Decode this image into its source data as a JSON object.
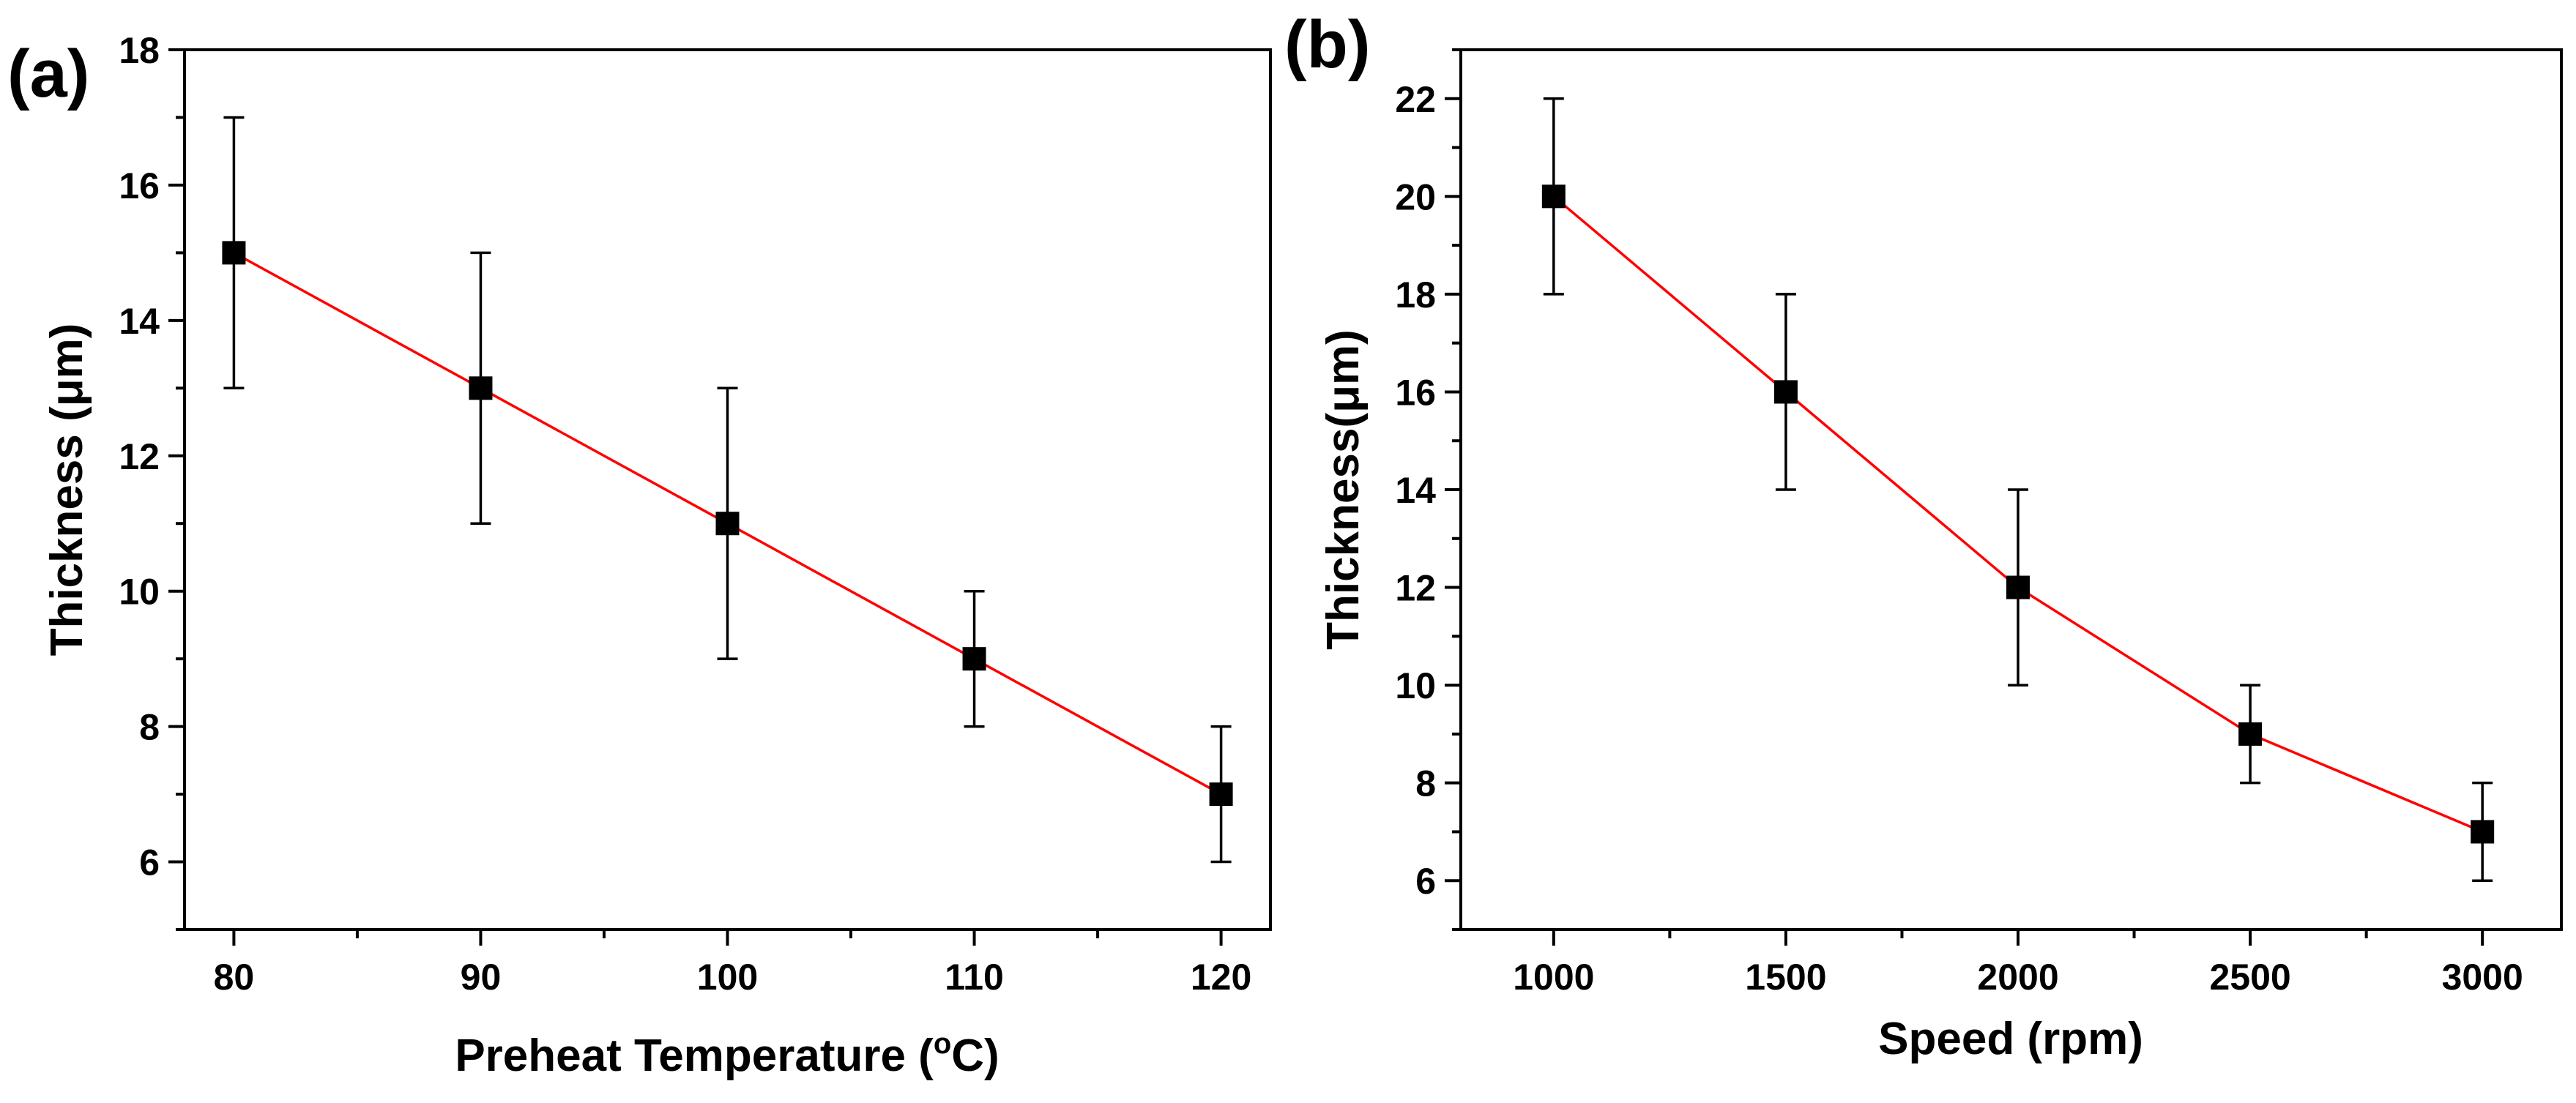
{
  "colors": {
    "line": "#ff0000",
    "marker": "#000000",
    "axis": "#000000"
  },
  "chart_data": [
    {
      "panel_label": "(a)",
      "type": "line",
      "xlabel": "Preheat Temperature (",
      "xlabel_sup": "o",
      "xlabel_end": "C)",
      "ylabel": "Thickness (μm)",
      "xlim": [
        78,
        122
      ],
      "ylim": [
        5,
        18
      ],
      "xticks": [
        80,
        90,
        100,
        110,
        120
      ],
      "xminor": [
        85,
        95,
        105,
        115
      ],
      "yticks": [
        6,
        8,
        10,
        12,
        14,
        16,
        18
      ],
      "yminor": [
        5,
        7,
        9,
        11,
        13,
        15,
        17
      ],
      "series": [
        {
          "name": "Thickness",
          "x": [
            80,
            90,
            100,
            110,
            120
          ],
          "y": [
            15,
            13,
            11,
            9,
            7
          ],
          "err": [
            2,
            2,
            2,
            1,
            1
          ]
        }
      ]
    },
    {
      "panel_label": "(b)",
      "type": "line",
      "xlabel": "Speed (rpm)",
      "ylabel": "Thickness(μm)",
      "xlim": [
        800,
        3170
      ],
      "ylim": [
        5,
        23
      ],
      "xticks": [
        1000,
        1500,
        2000,
        2500,
        3000
      ],
      "xminor": [
        1250,
        1750,
        2250,
        2750
      ],
      "yticks": [
        6,
        8,
        10,
        12,
        14,
        16,
        18,
        20,
        22
      ],
      "yminor": [
        5,
        7,
        9,
        11,
        13,
        15,
        17,
        19,
        21,
        23
      ],
      "series": [
        {
          "name": "Thickness",
          "x": [
            1000,
            1500,
            2000,
            2500,
            3000
          ],
          "y": [
            20,
            16,
            12,
            9,
            7
          ],
          "err": [
            2,
            2,
            2,
            1,
            1
          ]
        }
      ]
    }
  ]
}
